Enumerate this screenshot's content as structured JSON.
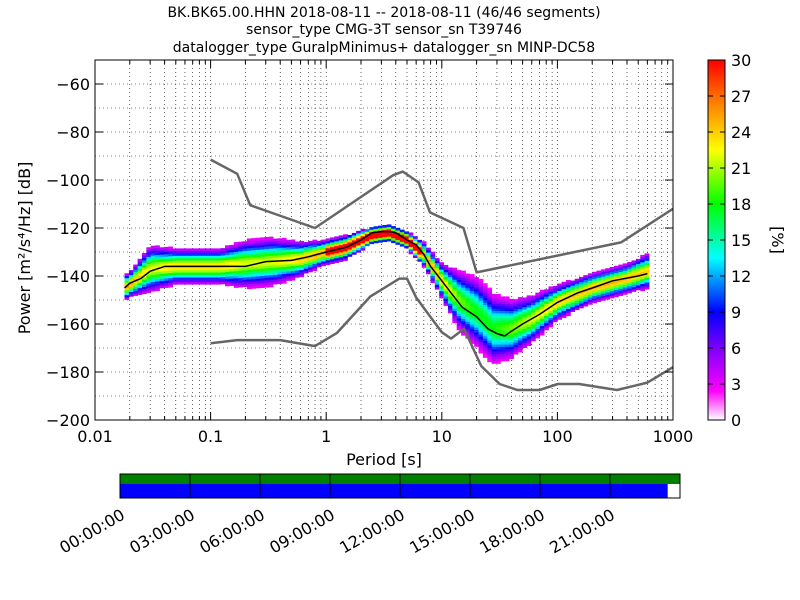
{
  "chart_data": {
    "type": "heatmap",
    "title": [
      "BK.BK65.00.HHN   2018-08-11 -- 2018-08-11  (46/46 segments)",
      "sensor_type CMG-3T sensor_sn T39746",
      "datalogger_type GuralpMinimus+ datalogger_sn MINP-DC58"
    ],
    "xlabel": "Period [s]",
    "ylabel": "Power [m²/s⁴/Hz] [dB]",
    "xscale": "log",
    "xlim": [
      0.01,
      1000
    ],
    "ylim": [
      -200,
      -50
    ],
    "xticks": [
      "0.01",
      "0.1",
      "1",
      "10",
      "100",
      "1000"
    ],
    "yticks": [
      "−60",
      "−80",
      "−100",
      "−120",
      "−140",
      "−160",
      "−180",
      "−200"
    ],
    "colorbar": {
      "label": "[%]",
      "range": [
        0,
        30
      ],
      "ticks": [
        "30",
        "27",
        "24",
        "21",
        "18",
        "15",
        "12",
        "9",
        "6",
        "3",
        "0"
      ],
      "colors": [
        "#ffffff",
        "#ff00ff",
        "#7d00ff",
        "#0000ff",
        "#00ffff",
        "#00ff00",
        "#ffff00",
        "#ff8000",
        "#ff0000"
      ]
    },
    "noise_model_high": {
      "x": [
        0.1,
        0.17,
        0.22,
        0.8,
        3.8,
        4.6,
        6.3,
        7.9,
        15.4,
        20,
        354.8,
        1000
      ],
      "y": [
        -91.5,
        -97.4,
        -110.5,
        -120,
        -98,
        -96.5,
        -101,
        -113.5,
        -120,
        -138.5,
        -126,
        -112
      ]
    },
    "noise_model_low": {
      "x": [
        0.1,
        0.17,
        0.4,
        0.8,
        1.24,
        2.4,
        4.3,
        5,
        6,
        10,
        12,
        15.6,
        21.9,
        31.6,
        45,
        70,
        101,
        154,
        328,
        600,
        1000
      ],
      "y": [
        -168,
        -166.7,
        -166.7,
        -169.2,
        -163.7,
        -148.6,
        -141.1,
        -141.1,
        -149,
        -163.4,
        -166.1,
        -162,
        -177.5,
        -185,
        -187.5,
        -187.5,
        -185,
        -185,
        -187.5,
        -184.4,
        -178
      ]
    },
    "median_curve": {
      "x": [
        0.018,
        0.02,
        0.025,
        0.03,
        0.04,
        0.05,
        0.07,
        0.1,
        0.15,
        0.2,
        0.3,
        0.5,
        0.7,
        1,
        1.5,
        2,
        2.5,
        3,
        3.5,
        4,
        5,
        6,
        7,
        8,
        10,
        12,
        15,
        20,
        25,
        30,
        35,
        40,
        50,
        70,
        100,
        150,
        200,
        300,
        500,
        600
      ],
      "y": [
        -145,
        -143,
        -141,
        -138,
        -136,
        -136,
        -136,
        -136,
        -136,
        -136,
        -134,
        -133.5,
        -132,
        -130,
        -128,
        -125,
        -122,
        -121.5,
        -121.5,
        -122,
        -125,
        -127,
        -131,
        -136,
        -142,
        -147,
        -153,
        -157,
        -162,
        -164,
        -165,
        -163,
        -160,
        -156,
        -151,
        -147,
        -145,
        -142,
        -140,
        -139
      ]
    },
    "density": [
      {
        "x": 0.018,
        "c": -145,
        "w": 4
      },
      {
        "x": 0.022,
        "c": -142,
        "w": 5
      },
      {
        "x": 0.03,
        "c": -137,
        "w": 8
      },
      {
        "x": 0.05,
        "c": -136,
        "w": 6
      },
      {
        "x": 0.08,
        "c": -136,
        "w": 6
      },
      {
        "x": 0.12,
        "c": -136,
        "w": 6
      },
      {
        "x": 0.2,
        "c": -135,
        "w": 8
      },
      {
        "x": 0.35,
        "c": -134,
        "w": 8
      },
      {
        "x": 0.6,
        "c": -133,
        "w": 6
      },
      {
        "x": 1,
        "c": -130,
        "w": 4
      },
      {
        "x": 1.5,
        "c": -128,
        "w": 4
      },
      {
        "x": 2.5,
        "c": -123,
        "w": 3
      },
      {
        "x": 3.5,
        "c": -122,
        "w": 3
      },
      {
        "x": 5,
        "c": -125,
        "w": 3
      },
      {
        "x": 7,
        "c": -131,
        "w": 4
      },
      {
        "x": 10,
        "c": -142,
        "w": 6
      },
      {
        "x": 14,
        "c": -150,
        "w": 10
      },
      {
        "x": 20,
        "c": -155,
        "w": 12
      },
      {
        "x": 28,
        "c": -162,
        "w": 12
      },
      {
        "x": 40,
        "c": -162,
        "w": 10
      },
      {
        "x": 60,
        "c": -158,
        "w": 8
      },
      {
        "x": 100,
        "c": -151,
        "w": 6
      },
      {
        "x": 200,
        "c": -145,
        "w": 5
      },
      {
        "x": 400,
        "c": -141,
        "w": 5
      },
      {
        "x": 600,
        "c": -138,
        "w": 6
      }
    ],
    "timeline": {
      "labels": [
        "00:00:00",
        "03:00:00",
        "06:00:00",
        "09:00:00",
        "12:00:00",
        "15:00:00",
        "18:00:00",
        "21:00:00"
      ],
      "coverage_fraction": 0.978,
      "colors": {
        "top": "#008000",
        "bottom": "#0000ff"
      }
    }
  }
}
